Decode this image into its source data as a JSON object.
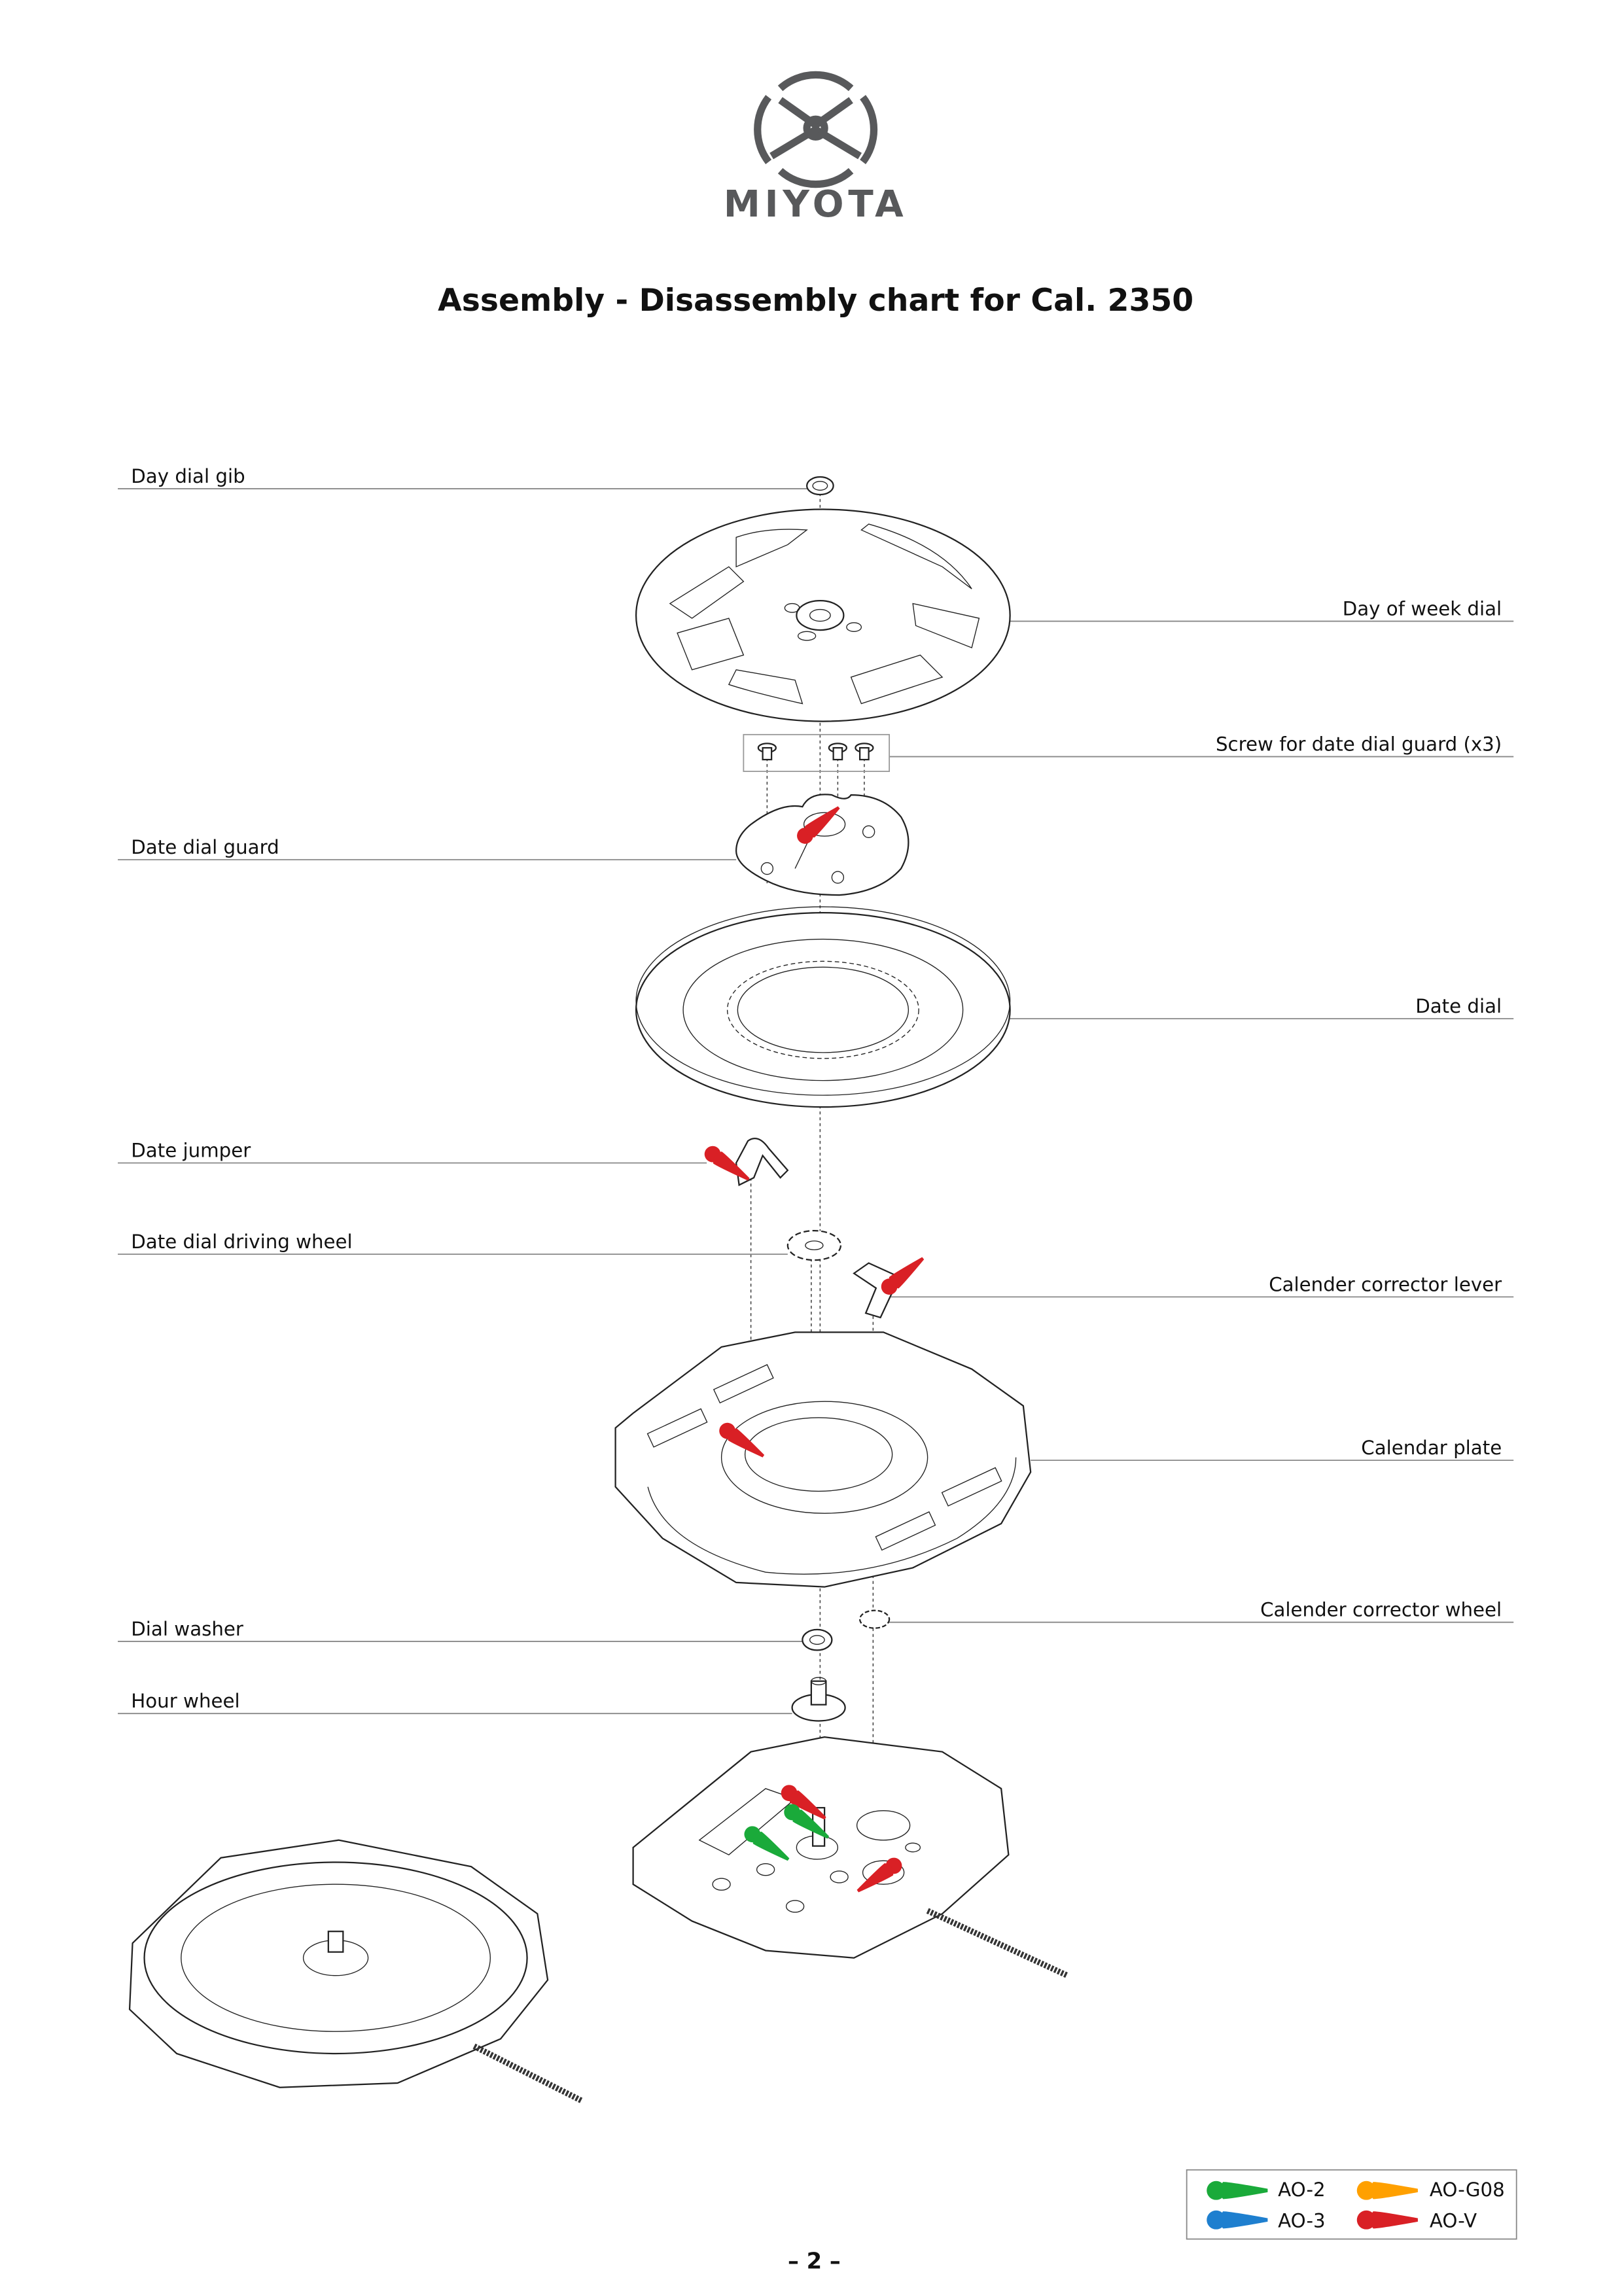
{
  "brand": {
    "name": "MIYOTA",
    "logo_color": "#58595b"
  },
  "title": "Assembly - Disassembly chart for Cal. 2350",
  "parts": {
    "day_dial_gib": "Day dial gib",
    "day_of_week_dial": "Day of week dial",
    "screw_date_dial_guard": "Screw for date dial guard (x3)",
    "date_dial_guard": "Date dial guard",
    "date_dial": "Date dial",
    "date_jumper": "Date jumper",
    "date_dial_driving_wheel": "Date dial driving wheel",
    "calender_corrector_lever": "Calender corrector lever",
    "calendar_plate": "Calendar plate",
    "calender_corrector_wheel": "Calender corrector wheel",
    "dial_washer": "Dial washer",
    "hour_wheel": "Hour wheel"
  },
  "legend": {
    "items": [
      {
        "label": "AO-2",
        "color": "#1aaa3a"
      },
      {
        "label": "AO-G08",
        "color": "#ffa000"
      },
      {
        "label": "AO-3",
        "color": "#1e7fcf"
      },
      {
        "label": "AO-V",
        "color": "#d92025"
      }
    ]
  },
  "page_number": "– 2 –"
}
